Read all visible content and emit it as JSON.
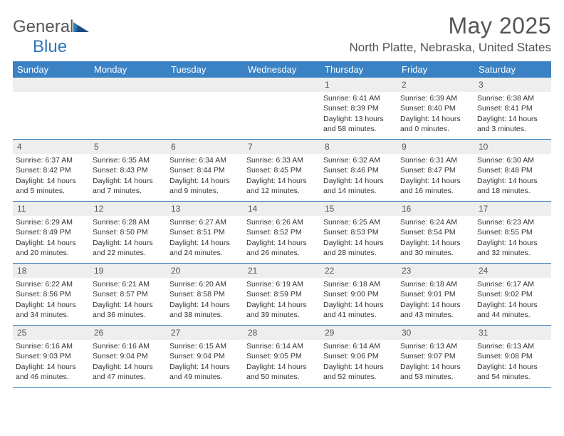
{
  "logo": {
    "text_general": "General",
    "text_blue": "Blue"
  },
  "title": "May 2025",
  "location": "North Platte, Nebraska, United States",
  "colors": {
    "header_bg": "#3a82c4",
    "daynum_bg": "#eeeeee",
    "week_border": "#2f77b8",
    "text": "#333333"
  },
  "weekdays": [
    "Sunday",
    "Monday",
    "Tuesday",
    "Wednesday",
    "Thursday",
    "Friday",
    "Saturday"
  ],
  "weeks": [
    [
      {
        "n": "",
        "sunrise": "",
        "sunset": "",
        "daylight": ""
      },
      {
        "n": "",
        "sunrise": "",
        "sunset": "",
        "daylight": ""
      },
      {
        "n": "",
        "sunrise": "",
        "sunset": "",
        "daylight": ""
      },
      {
        "n": "",
        "sunrise": "",
        "sunset": "",
        "daylight": ""
      },
      {
        "n": "1",
        "sunrise": "Sunrise: 6:41 AM",
        "sunset": "Sunset: 8:39 PM",
        "daylight": "Daylight: 13 hours and 58 minutes."
      },
      {
        "n": "2",
        "sunrise": "Sunrise: 6:39 AM",
        "sunset": "Sunset: 8:40 PM",
        "daylight": "Daylight: 14 hours and 0 minutes."
      },
      {
        "n": "3",
        "sunrise": "Sunrise: 6:38 AM",
        "sunset": "Sunset: 8:41 PM",
        "daylight": "Daylight: 14 hours and 3 minutes."
      }
    ],
    [
      {
        "n": "4",
        "sunrise": "Sunrise: 6:37 AM",
        "sunset": "Sunset: 8:42 PM",
        "daylight": "Daylight: 14 hours and 5 minutes."
      },
      {
        "n": "5",
        "sunrise": "Sunrise: 6:35 AM",
        "sunset": "Sunset: 8:43 PM",
        "daylight": "Daylight: 14 hours and 7 minutes."
      },
      {
        "n": "6",
        "sunrise": "Sunrise: 6:34 AM",
        "sunset": "Sunset: 8:44 PM",
        "daylight": "Daylight: 14 hours and 9 minutes."
      },
      {
        "n": "7",
        "sunrise": "Sunrise: 6:33 AM",
        "sunset": "Sunset: 8:45 PM",
        "daylight": "Daylight: 14 hours and 12 minutes."
      },
      {
        "n": "8",
        "sunrise": "Sunrise: 6:32 AM",
        "sunset": "Sunset: 8:46 PM",
        "daylight": "Daylight: 14 hours and 14 minutes."
      },
      {
        "n": "9",
        "sunrise": "Sunrise: 6:31 AM",
        "sunset": "Sunset: 8:47 PM",
        "daylight": "Daylight: 14 hours and 16 minutes."
      },
      {
        "n": "10",
        "sunrise": "Sunrise: 6:30 AM",
        "sunset": "Sunset: 8:48 PM",
        "daylight": "Daylight: 14 hours and 18 minutes."
      }
    ],
    [
      {
        "n": "11",
        "sunrise": "Sunrise: 6:29 AM",
        "sunset": "Sunset: 8:49 PM",
        "daylight": "Daylight: 14 hours and 20 minutes."
      },
      {
        "n": "12",
        "sunrise": "Sunrise: 6:28 AM",
        "sunset": "Sunset: 8:50 PM",
        "daylight": "Daylight: 14 hours and 22 minutes."
      },
      {
        "n": "13",
        "sunrise": "Sunrise: 6:27 AM",
        "sunset": "Sunset: 8:51 PM",
        "daylight": "Daylight: 14 hours and 24 minutes."
      },
      {
        "n": "14",
        "sunrise": "Sunrise: 6:26 AM",
        "sunset": "Sunset: 8:52 PM",
        "daylight": "Daylight: 14 hours and 26 minutes."
      },
      {
        "n": "15",
        "sunrise": "Sunrise: 6:25 AM",
        "sunset": "Sunset: 8:53 PM",
        "daylight": "Daylight: 14 hours and 28 minutes."
      },
      {
        "n": "16",
        "sunrise": "Sunrise: 6:24 AM",
        "sunset": "Sunset: 8:54 PM",
        "daylight": "Daylight: 14 hours and 30 minutes."
      },
      {
        "n": "17",
        "sunrise": "Sunrise: 6:23 AM",
        "sunset": "Sunset: 8:55 PM",
        "daylight": "Daylight: 14 hours and 32 minutes."
      }
    ],
    [
      {
        "n": "18",
        "sunrise": "Sunrise: 6:22 AM",
        "sunset": "Sunset: 8:56 PM",
        "daylight": "Daylight: 14 hours and 34 minutes."
      },
      {
        "n": "19",
        "sunrise": "Sunrise: 6:21 AM",
        "sunset": "Sunset: 8:57 PM",
        "daylight": "Daylight: 14 hours and 36 minutes."
      },
      {
        "n": "20",
        "sunrise": "Sunrise: 6:20 AM",
        "sunset": "Sunset: 8:58 PM",
        "daylight": "Daylight: 14 hours and 38 minutes."
      },
      {
        "n": "21",
        "sunrise": "Sunrise: 6:19 AM",
        "sunset": "Sunset: 8:59 PM",
        "daylight": "Daylight: 14 hours and 39 minutes."
      },
      {
        "n": "22",
        "sunrise": "Sunrise: 6:18 AM",
        "sunset": "Sunset: 9:00 PM",
        "daylight": "Daylight: 14 hours and 41 minutes."
      },
      {
        "n": "23",
        "sunrise": "Sunrise: 6:18 AM",
        "sunset": "Sunset: 9:01 PM",
        "daylight": "Daylight: 14 hours and 43 minutes."
      },
      {
        "n": "24",
        "sunrise": "Sunrise: 6:17 AM",
        "sunset": "Sunset: 9:02 PM",
        "daylight": "Daylight: 14 hours and 44 minutes."
      }
    ],
    [
      {
        "n": "25",
        "sunrise": "Sunrise: 6:16 AM",
        "sunset": "Sunset: 9:03 PM",
        "daylight": "Daylight: 14 hours and 46 minutes."
      },
      {
        "n": "26",
        "sunrise": "Sunrise: 6:16 AM",
        "sunset": "Sunset: 9:04 PM",
        "daylight": "Daylight: 14 hours and 47 minutes."
      },
      {
        "n": "27",
        "sunrise": "Sunrise: 6:15 AM",
        "sunset": "Sunset: 9:04 PM",
        "daylight": "Daylight: 14 hours and 49 minutes."
      },
      {
        "n": "28",
        "sunrise": "Sunrise: 6:14 AM",
        "sunset": "Sunset: 9:05 PM",
        "daylight": "Daylight: 14 hours and 50 minutes."
      },
      {
        "n": "29",
        "sunrise": "Sunrise: 6:14 AM",
        "sunset": "Sunset: 9:06 PM",
        "daylight": "Daylight: 14 hours and 52 minutes."
      },
      {
        "n": "30",
        "sunrise": "Sunrise: 6:13 AM",
        "sunset": "Sunset: 9:07 PM",
        "daylight": "Daylight: 14 hours and 53 minutes."
      },
      {
        "n": "31",
        "sunrise": "Sunrise: 6:13 AM",
        "sunset": "Sunset: 9:08 PM",
        "daylight": "Daylight: 14 hours and 54 minutes."
      }
    ]
  ]
}
